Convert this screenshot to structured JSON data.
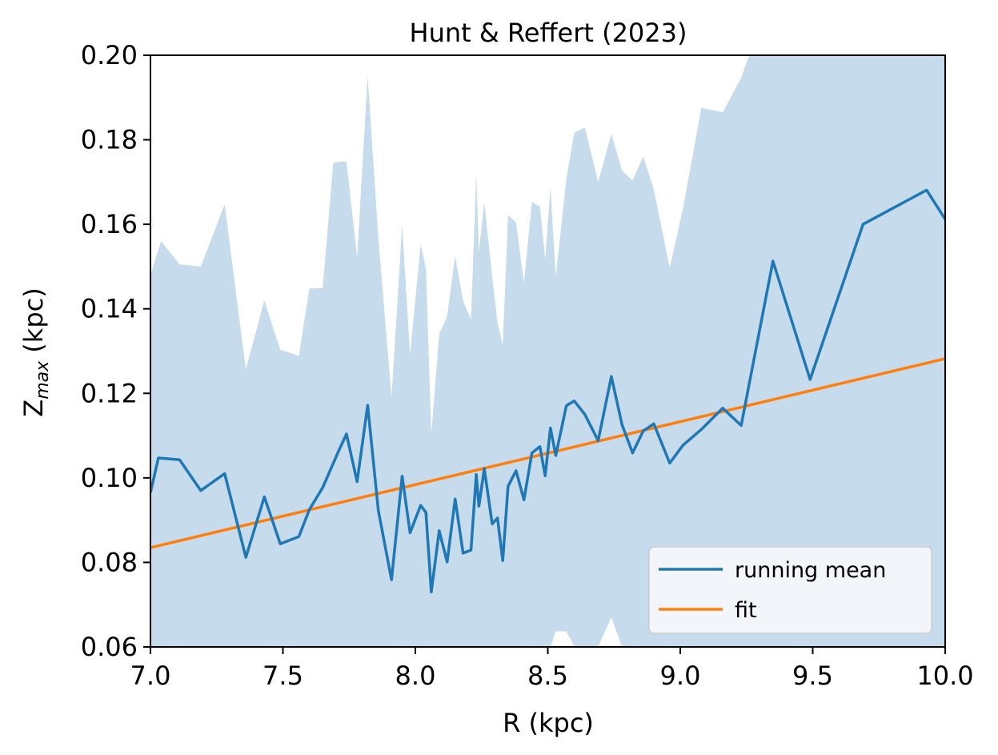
{
  "chart_data": {
    "type": "line",
    "title": "Hunt & Reffert (2023)",
    "xlabel": "R (kpc)",
    "ylabel_main": "Z",
    "ylabel_sub": "max",
    "ylabel_unit": " (kpc)",
    "xlim": [
      7.0,
      10.0
    ],
    "ylim": [
      0.06,
      0.2
    ],
    "xticks": [
      7.0,
      7.5,
      8.0,
      8.5,
      9.0,
      9.5,
      10.0
    ],
    "xtick_labels": [
      "7.0",
      "7.5",
      "8.0",
      "8.5",
      "9.0",
      "9.5",
      "10.0"
    ],
    "yticks": [
      0.06,
      0.08,
      0.1,
      0.12,
      0.14,
      0.16,
      0.18,
      0.2
    ],
    "ytick_labels": [
      "0.06",
      "0.08",
      "0.10",
      "0.12",
      "0.14",
      "0.16",
      "0.18",
      "0.20"
    ],
    "grid": false,
    "legend_position": "bottom-right",
    "colors": {
      "mean": "#1f77b4",
      "fit": "#ff7f0e",
      "band": "#c6dbec"
    },
    "series": [
      {
        "name": "running mean",
        "x": [
          7.0,
          7.03,
          7.11,
          7.19,
          7.28,
          7.36,
          7.43,
          7.49,
          7.56,
          7.6,
          7.65,
          7.71,
          7.74,
          7.78,
          7.82,
          7.86,
          7.91,
          7.95,
          7.98,
          8.02,
          8.04,
          8.06,
          8.09,
          8.12,
          8.15,
          8.18,
          8.21,
          8.23,
          8.24,
          8.26,
          8.29,
          8.31,
          8.33,
          8.35,
          8.38,
          8.41,
          8.44,
          8.47,
          8.49,
          8.51,
          8.53,
          8.57,
          8.6,
          8.64,
          8.69,
          8.74,
          8.78,
          8.82,
          8.86,
          8.9,
          8.96,
          9.01,
          9.08,
          9.16,
          9.23,
          9.35,
          9.49,
          9.69,
          9.93,
          10.0
        ],
        "y": [
          0.0965,
          0.1047,
          0.1043,
          0.097,
          0.101,
          0.0812,
          0.0955,
          0.0844,
          0.0861,
          0.0925,
          0.0977,
          0.1063,
          0.1104,
          0.0991,
          0.1172,
          0.0923,
          0.0759,
          0.1004,
          0.087,
          0.0935,
          0.0918,
          0.073,
          0.0875,
          0.0801,
          0.095,
          0.0822,
          0.0829,
          0.1008,
          0.0933,
          0.1022,
          0.0891,
          0.0905,
          0.0804,
          0.098,
          0.1017,
          0.0948,
          0.1059,
          0.1074,
          0.1005,
          0.1118,
          0.1053,
          0.1171,
          0.1182,
          0.115,
          0.1088,
          0.124,
          0.1126,
          0.1059,
          0.1111,
          0.1128,
          0.1035,
          0.1077,
          0.1115,
          0.1165,
          0.1124,
          0.1513,
          0.1233,
          0.16,
          0.1681,
          0.1612
        ]
      },
      {
        "name": "fit",
        "x": [
          7.0,
          10.0
        ],
        "y": [
          0.0835,
          0.1282
        ]
      }
    ],
    "band": {
      "x": [
        7.0,
        7.01,
        7.04,
        7.11,
        7.19,
        7.28,
        7.36,
        7.43,
        7.49,
        7.56,
        7.6,
        7.65,
        7.69,
        7.71,
        7.74,
        7.78,
        7.82,
        7.86,
        7.91,
        7.95,
        7.98,
        8.02,
        8.04,
        8.06,
        8.09,
        8.12,
        8.15,
        8.18,
        8.21,
        8.23,
        8.24,
        8.26,
        8.29,
        8.31,
        8.33,
        8.35,
        8.38,
        8.41,
        8.44,
        8.47,
        8.49,
        8.51,
        8.53,
        8.57,
        8.6,
        8.64,
        8.69,
        8.74,
        8.78,
        8.82,
        8.86,
        8.9,
        8.96,
        9.01,
        9.08,
        9.16,
        9.23,
        9.26,
        9.49,
        9.69,
        9.93,
        10.0
      ],
      "upper": [
        0.148,
        0.15,
        0.156,
        0.1505,
        0.15,
        0.1647,
        0.1257,
        0.142,
        0.1303,
        0.1289,
        0.1448,
        0.1449,
        0.1745,
        0.1748,
        0.1749,
        0.1522,
        0.1951,
        0.157,
        0.1191,
        0.1598,
        0.1292,
        0.1553,
        0.1495,
        0.1105,
        0.134,
        0.1383,
        0.1525,
        0.1419,
        0.1375,
        0.1719,
        0.1535,
        0.1652,
        0.1476,
        0.1369,
        0.1314,
        0.1622,
        0.1604,
        0.1461,
        0.1653,
        0.1642,
        0.1518,
        0.1687,
        0.1476,
        0.1709,
        0.1817,
        0.1829,
        0.17,
        0.1814,
        0.1727,
        0.1704,
        0.1761,
        0.1683,
        0.1497,
        0.1637,
        0.1876,
        0.1865,
        0.1947,
        0.2,
        0.2,
        0.2,
        0.2,
        0.2
      ],
      "lower": [
        0.06,
        0.06,
        0.06,
        0.06,
        0.06,
        0.06,
        0.06,
        0.06,
        0.06,
        0.06,
        0.06,
        0.06,
        0.06,
        0.06,
        0.06,
        0.06,
        0.06,
        0.06,
        0.06,
        0.06,
        0.06,
        0.06,
        0.06,
        0.06,
        0.06,
        0.06,
        0.06,
        0.06,
        0.06,
        0.06,
        0.06,
        0.06,
        0.06,
        0.06,
        0.06,
        0.06,
        0.06,
        0.06,
        0.06,
        0.06,
        0.06,
        0.06,
        0.0637,
        0.0637,
        0.06,
        0.06,
        0.06,
        0.067,
        0.06,
        0.06,
        0.06,
        0.06,
        0.06,
        0.06,
        0.06,
        0.06,
        0.06,
        0.06,
        0.06,
        0.06,
        0.06,
        0.06
      ]
    }
  }
}
